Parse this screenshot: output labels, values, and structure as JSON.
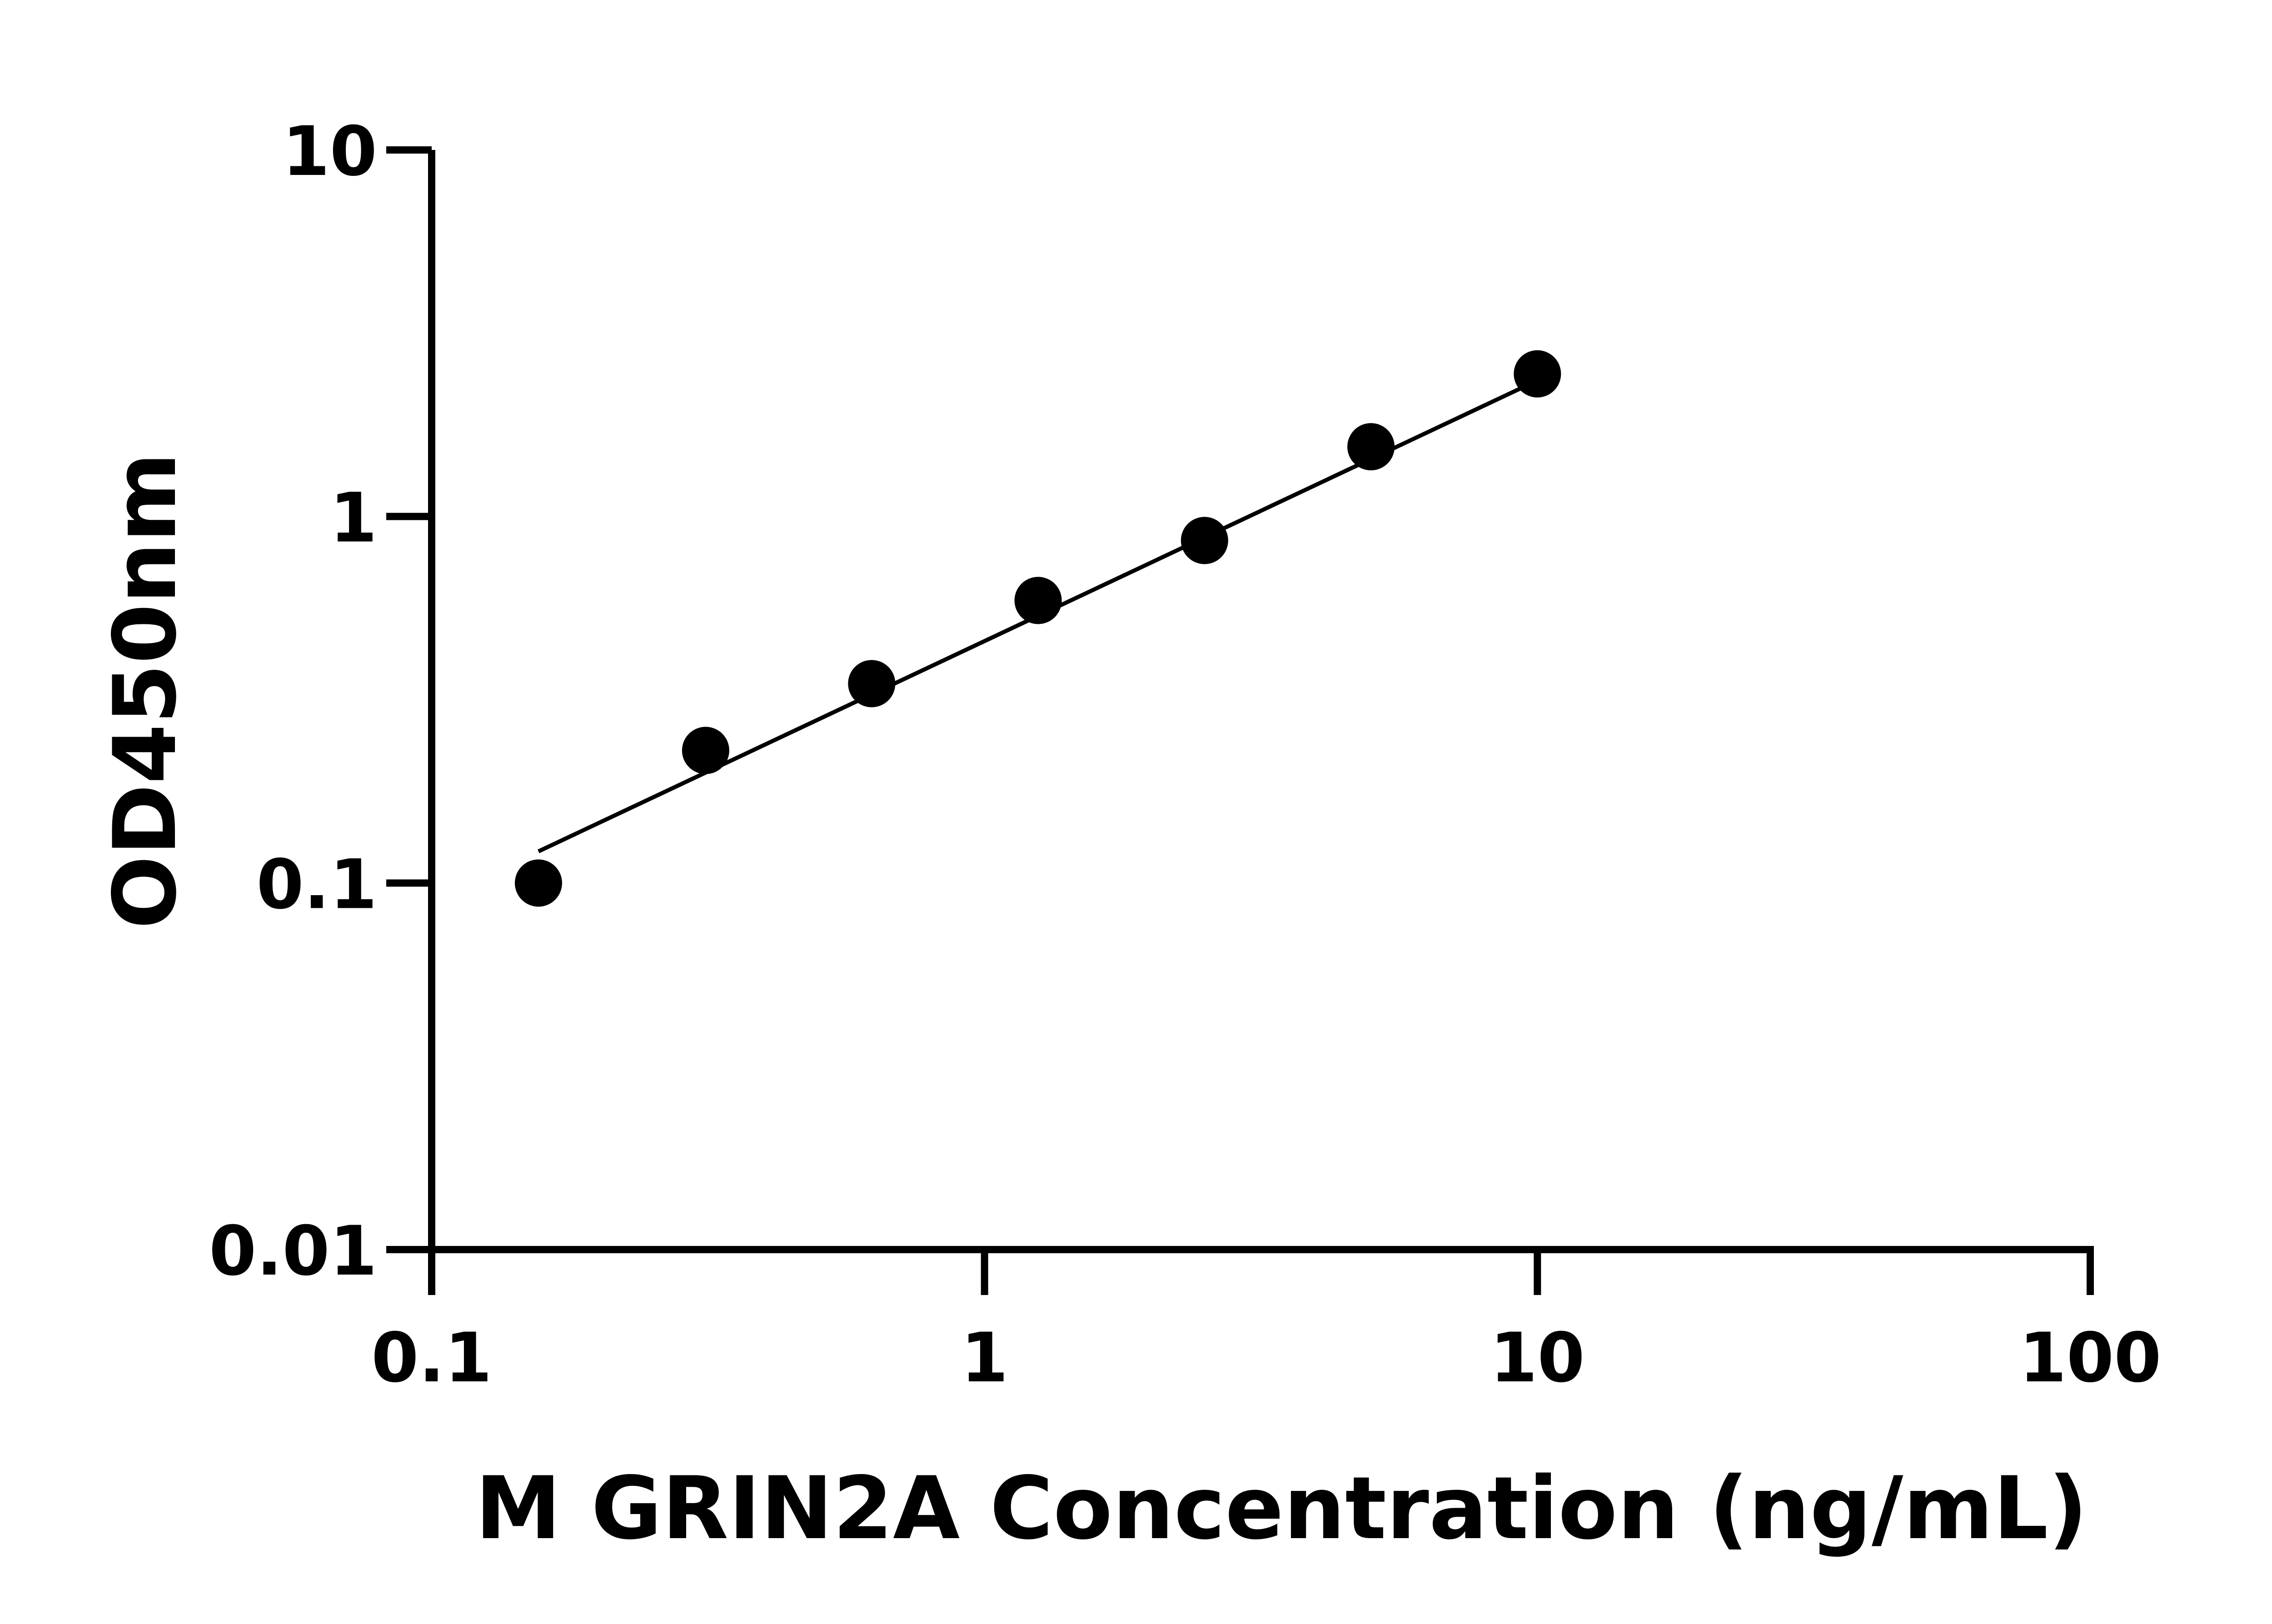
{
  "chart_data": {
    "type": "scatter",
    "title": "",
    "xlabel": "M GRIN2A Concentration (ng/mL)",
    "ylabel": "OD450nm",
    "x_scale": "log",
    "y_scale": "log",
    "xlim": [
      0.1,
      100
    ],
    "ylim": [
      0.01,
      10
    ],
    "x_ticks": [
      "0.1",
      "1",
      "10",
      "100"
    ],
    "y_ticks": [
      "0.01",
      "0.1",
      "1",
      "10"
    ],
    "grid": false,
    "legend": "none",
    "series": [
      {
        "x": [
          0.156,
          0.313,
          0.625,
          1.25,
          2.5,
          5,
          10
        ],
        "y": [
          0.1,
          0.23,
          0.35,
          0.59,
          0.86,
          1.55,
          2.45
        ],
        "marker": "filled-circle",
        "color": "#000000"
      }
    ],
    "fit_line": {
      "x_range": [
        0.156,
        10
      ],
      "y_range": [
        0.122,
        2.35
      ],
      "color": "#000000"
    }
  }
}
